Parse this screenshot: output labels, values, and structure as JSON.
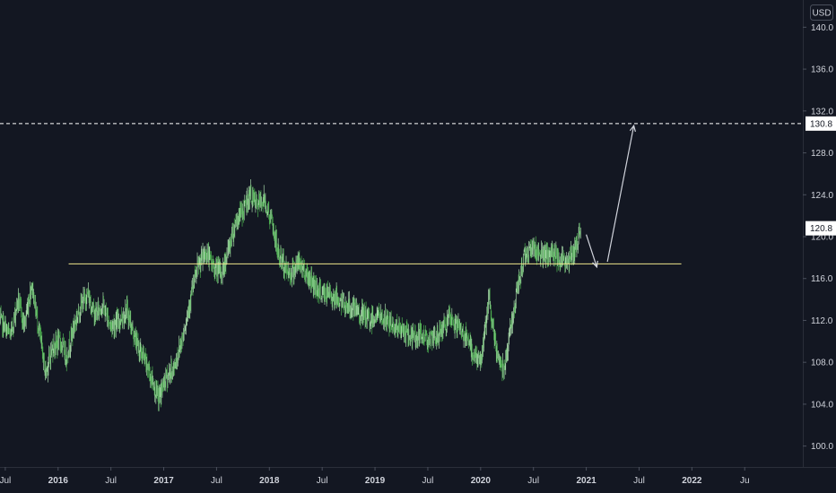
{
  "chart_data": {
    "type": "bar",
    "style": "ohlc",
    "currency_label": "USD",
    "y_ticks": [
      "140.0",
      "136.0",
      "132.0",
      "128.0",
      "124.0",
      "120.0",
      "116.0",
      "112.0",
      "108.0",
      "104.0",
      "100.0"
    ],
    "x_ticks": [
      {
        "label": "Jul",
        "t": 2015.5,
        "major": false
      },
      {
        "label": "2016",
        "t": 2016.0,
        "major": true
      },
      {
        "label": "Jul",
        "t": 2016.5,
        "major": false
      },
      {
        "label": "2017",
        "t": 2017.0,
        "major": true
      },
      {
        "label": "Jul",
        "t": 2017.5,
        "major": false
      },
      {
        "label": "2018",
        "t": 2018.0,
        "major": true
      },
      {
        "label": "Jul",
        "t": 2018.5,
        "major": false
      },
      {
        "label": "2019",
        "t": 2019.0,
        "major": true
      },
      {
        "label": "Jul",
        "t": 2019.5,
        "major": false
      },
      {
        "label": "2020",
        "t": 2020.0,
        "major": true
      },
      {
        "label": "Jul",
        "t": 2020.5,
        "major": false
      },
      {
        "label": "2021",
        "t": 2021.0,
        "major": true
      },
      {
        "label": "Jul",
        "t": 2021.5,
        "major": false
      },
      {
        "label": "2022",
        "t": 2022.0,
        "major": true
      },
      {
        "label": "Ju",
        "t": 2022.5,
        "major": false
      }
    ],
    "xlim": [
      2015.45,
      2023.05
    ],
    "ylim": [
      98.0,
      142.6
    ],
    "series": [
      {
        "values_time": [
          2015.45,
          2015.55,
          2015.62,
          2015.68,
          2015.75,
          2015.82,
          2015.88,
          2015.95,
          2016.02,
          2016.08,
          2016.15,
          2016.22,
          2016.28,
          2016.35,
          2016.42,
          2016.5,
          2016.58,
          2016.65,
          2016.72,
          2016.78,
          2016.85,
          2016.9,
          2016.95,
          2017.02,
          2017.1,
          2017.18,
          2017.25,
          2017.32,
          2017.4,
          2017.48,
          2017.55,
          2017.62,
          2017.68,
          2017.75,
          2017.82,
          2017.88,
          2017.95,
          2018.02,
          2018.08,
          2018.15,
          2018.2,
          2018.28,
          2018.35,
          2018.42,
          2018.5,
          2018.58,
          2018.65,
          2018.72,
          2018.8,
          2018.88,
          2018.95,
          2019.02,
          2019.1,
          2019.18,
          2019.25,
          2019.32,
          2019.4,
          2019.48,
          2019.55,
          2019.62,
          2019.7,
          2019.78,
          2019.85,
          2019.92,
          2020.0,
          2020.08,
          2020.13,
          2020.18,
          2020.22,
          2020.28,
          2020.35,
          2020.42,
          2020.5,
          2020.55,
          2020.62,
          2020.68,
          2020.75,
          2020.82,
          2020.9,
          2020.95
        ],
        "values_price": [
          112.0,
          110.5,
          114.0,
          111.5,
          115.5,
          111.0,
          107.0,
          109.5,
          110.0,
          108.5,
          111.5,
          113.5,
          114.5,
          112.5,
          113.5,
          111.5,
          112.0,
          113.0,
          110.5,
          109.0,
          107.5,
          106.0,
          104.5,
          106.5,
          107.5,
          110.5,
          114.0,
          117.0,
          118.5,
          117.0,
          116.5,
          119.0,
          121.5,
          122.5,
          124.0,
          123.0,
          123.5,
          121.5,
          118.5,
          117.0,
          116.5,
          117.5,
          116.5,
          115.5,
          114.5,
          114.5,
          114.0,
          113.5,
          113.0,
          112.5,
          112.0,
          112.5,
          112.0,
          111.5,
          111.0,
          110.5,
          110.5,
          110.5,
          110.0,
          111.0,
          112.0,
          111.5,
          110.5,
          109.0,
          108.0,
          114.0,
          110.0,
          108.0,
          107.5,
          111.0,
          115.0,
          118.5,
          119.0,
          118.5,
          118.0,
          118.5,
          118.0,
          117.5,
          119.0,
          120.8
        ]
      }
    ],
    "levels": [
      {
        "price": 117.4,
        "t_start": 2016.1,
        "t_end": 2021.9,
        "style": "solid",
        "color": "#f0e68c"
      },
      {
        "price": 130.8,
        "style": "dashed",
        "color": "#ffffff"
      }
    ],
    "arrows": [
      {
        "from": [
          2021.0,
          120.2
        ],
        "to": [
          2021.1,
          117.1
        ],
        "color": "#d1d4dc"
      },
      {
        "from": [
          2021.2,
          117.6
        ],
        "to": [
          2021.45,
          130.6
        ],
        "color": "#d1d4dc"
      }
    ],
    "price_labels": [
      {
        "text": "130.8",
        "price": 130.8
      },
      {
        "text": "120.8",
        "price": 120.8
      }
    ]
  }
}
